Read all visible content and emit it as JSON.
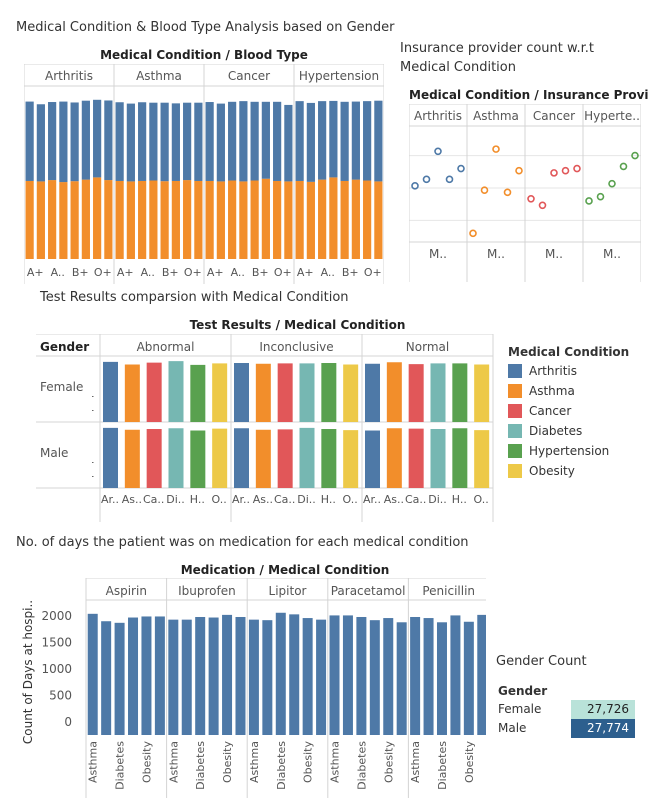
{
  "dashboard": {
    "title1": "Medical Condition & Blood Type Analysis based on Gender",
    "head1": "Medical Condition  /  Blood Type",
    "title2a": "Insurance provider count w.r.t",
    "title2b": "Medical Condition",
    "head2": "Medical Condition  /  Insurance Provider",
    "title3": "Test Results comparsion with Medical Condition",
    "head3": "Test Results  /  Medical Condition",
    "title4": "No. of days the patient was on medication for each medical condition",
    "head4": "Medication  /  Medical Condition",
    "title5": "Gender Count"
  },
  "colors": {
    "blue": "#4e79a7",
    "orange": "#f28e2b",
    "red": "#e15759",
    "teal": "#76b7b2",
    "green": "#59a14f",
    "yellow": "#edc948",
    "female_cell": "#b9e2d9",
    "male_cell": "#2d5f8e"
  },
  "legend": {
    "title": "Medical Condition",
    "items": [
      {
        "label": "Arthritis",
        "color": "#4e79a7"
      },
      {
        "label": "Asthma",
        "color": "#f28e2b"
      },
      {
        "label": "Cancer",
        "color": "#e15759"
      },
      {
        "label": "Diabetes",
        "color": "#76b7b2"
      },
      {
        "label": "Hypertension",
        "color": "#59a14f"
      },
      {
        "label": "Obesity",
        "color": "#edc948"
      }
    ]
  },
  "gender_count": {
    "title": "Gender Count",
    "header": "Gender",
    "rows": [
      {
        "gender": "Female",
        "count": "27,726",
        "color": "#b9e2d9",
        "text": "#222222"
      },
      {
        "gender": "Male",
        "count": "27,774",
        "color": "#2d5f8e",
        "text": "#ffffff"
      }
    ]
  },
  "chart_data": [
    {
      "type": "bar",
      "name": "Medical Condition & Blood Type Analysis based on Gender",
      "stacked": true,
      "panels": [
        "Arthritis",
        "Asthma",
        "Cancer",
        "Hypertension"
      ],
      "tick_labels": [
        "A+",
        "A..",
        "B+",
        "O+"
      ],
      "series": [
        {
          "color": "#f28e2b",
          "values": [
            [
              1750,
              1740,
              1770,
              1725,
              1745,
              1780,
              1830,
              1770
            ],
            [
              1750,
              1740,
              1750,
              1760,
              1745,
              1750,
              1770,
              1750
            ],
            [
              1750,
              1740,
              1760,
              1740,
              1760,
              1800,
              1750,
              1740
            ],
            [
              1750,
              1730,
              1780,
              1830,
              1750,
              1780,
              1760,
              1740
            ]
          ]
        },
        {
          "color": "#4e79a7",
          "values": [
            [
              1780,
              1730,
              1750,
              1805,
              1765,
              1770,
              1740,
              1785
            ],
            [
              1765,
              1745,
              1765,
              1745,
              1760,
              1740,
              1735,
              1755
            ],
            [
              1770,
              1745,
              1765,
              1800,
              1765,
              1725,
              1775,
              1715
            ],
            [
              1790,
              1770,
              1760,
              1715,
              1775,
              1750,
              1780,
              1810
            ]
          ]
        }
      ],
      "ylim": [
        0,
        3700
      ]
    },
    {
      "type": "scatter",
      "name": "Insurance provider count w.r.t Medical Condition",
      "panels": [
        "Arthritis",
        "Asthma",
        "Cancer",
        "Hypertension"
      ],
      "panel_labels": [
        "Arthritis",
        "Asthma",
        "Cancer",
        "Hyperte.."
      ],
      "x_labels": [
        "M..",
        "M..",
        "M..",
        "M.."
      ],
      "colors": [
        "#4e79a7",
        "#f28e2b",
        "#e15759",
        "#59a14f"
      ],
      "values": [
        [
          2210,
          2240,
          2370,
          2240,
          2290
        ],
        [
          1990,
          2190,
          2380,
          2180,
          2280
        ],
        [
          2150,
          2120,
          2270,
          2280,
          2290
        ],
        [
          2140,
          2160,
          2220,
          2300,
          2350
        ]
      ],
      "ylim": [
        1950,
        2450
      ]
    },
    {
      "type": "bar",
      "name": "Test Results comparsion with Medical Condition",
      "row_header": "Gender",
      "rows": [
        "Female",
        "Male"
      ],
      "columns": [
        "Abnormal",
        "Inconclusive",
        "Normal"
      ],
      "tick_labels": [
        "Ar..",
        "As..",
        "Ca..",
        "Di..",
        "H..",
        "O.."
      ],
      "categories": [
        "Arthritis",
        "Asthma",
        "Cancer",
        "Diabetes",
        "Hypertension",
        "Obesity"
      ],
      "values": {
        "Female": [
          [
            1600,
            1530,
            1580,
            1620,
            1520,
            1560
          ],
          [
            1570,
            1550,
            1560,
            1560,
            1570,
            1530
          ],
          [
            1550,
            1590,
            1540,
            1560,
            1560,
            1530
          ]
        ],
        "Male": [
          [
            1600,
            1550,
            1570,
            1590,
            1530,
            1580
          ],
          [
            1590,
            1550,
            1560,
            1600,
            1570,
            1540
          ],
          [
            1530,
            1590,
            1580,
            1570,
            1590,
            1540
          ]
        ]
      },
      "ylim": [
        0,
        1650
      ]
    },
    {
      "type": "bar",
      "name": "No. of days the patient was on medication for each medical condition",
      "panels": [
        "Aspirin",
        "Ibuprofen",
        "Lipitor",
        "Paracetamol",
        "Penicillin"
      ],
      "tick_labels": [
        "Asthma",
        "",
        "Diabetes",
        "",
        "Obesity",
        ""
      ],
      "categories": [
        "Arthritis",
        "Asthma",
        "Cancer",
        "Diabetes",
        "Hypertension",
        "Obesity"
      ],
      "values": [
        [
          2040,
          1900,
          1870,
          1970,
          1990,
          1990
        ],
        [
          1930,
          1930,
          1980,
          1970,
          2020,
          1980
        ],
        [
          1930,
          1920,
          2060,
          2030,
          1960,
          1930
        ],
        [
          2010,
          2010,
          1980,
          1920,
          1960,
          1880
        ],
        [
          1980,
          1960,
          1880,
          2010,
          1890,
          2020
        ]
      ],
      "yticks": [
        0,
        500,
        1000,
        1500,
        2000
      ],
      "ylabel": "Count of Days at hospi..",
      "ylim": [
        -250,
        2150
      ]
    }
  ]
}
